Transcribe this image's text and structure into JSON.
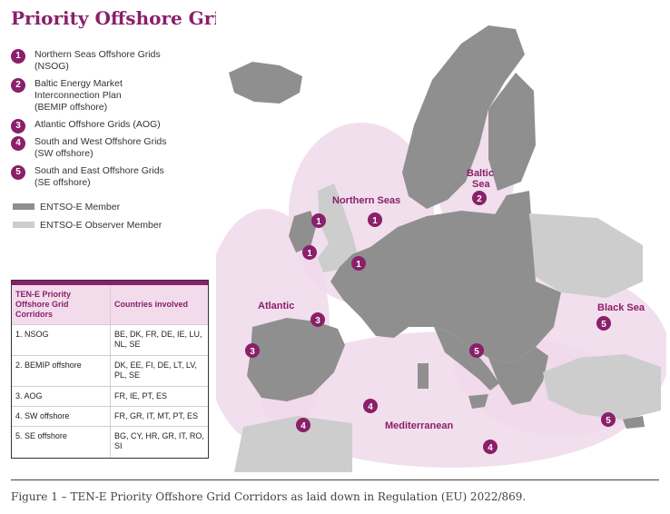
{
  "title": "Priority Offshore Grid Corridors",
  "legend": {
    "corridors": [
      {
        "num": "1",
        "lines": [
          "Northern Seas Offshore Grids",
          "(NSOG)"
        ]
      },
      {
        "num": "2",
        "lines": [
          "Baltic Energy Market",
          "Interconnection Plan",
          "(BEMIP offshore)"
        ]
      },
      {
        "num": "3",
        "lines": [
          "Atlantic Offshore Grids (AOG)"
        ]
      },
      {
        "num": "4",
        "lines": [
          "South and West Offshore Grids",
          "(SW offshore)"
        ]
      },
      {
        "num": "5",
        "lines": [
          "South and East Offshore Grids",
          "(SE offshore)"
        ]
      }
    ],
    "member": "ENTSO-E Member",
    "observer": "ENTSO-E Observer Member",
    "colors": {
      "member": "#8f8f8f",
      "observer": "#cdcdcd",
      "accent": "#8a1f6a",
      "corridor_fill": "#f0d9ea"
    }
  },
  "table": {
    "headers": [
      "TEN-E Priority Offshore Grid Corridors",
      "Countries involved"
    ],
    "rows": [
      {
        "corridor": "1. NSOG",
        "countries": "BE, DK, FR, DE, IE, LU, NL, SE"
      },
      {
        "corridor": "2. BEMIP offshore",
        "countries": "DK, EE, FI, DE, LT, LV, PL, SE"
      },
      {
        "corridor": "3. AOG",
        "countries": "FR, IE, PT, ES"
      },
      {
        "corridor": "4. SW offshore",
        "countries": "FR, GR, IT, MT, PT, ES"
      },
      {
        "corridor": "5. SE offshore",
        "countries": "BG, CY, HR, GR, IT, RO, SI"
      }
    ]
  },
  "map": {
    "regions": {
      "northern_seas": "Northern Seas",
      "baltic": [
        "Baltic",
        "Sea"
      ],
      "atlantic": "Atlantic",
      "mediterranean": "Mediterranean",
      "black_sea": "Black Sea"
    },
    "markers": [
      "1",
      "1",
      "1",
      "1",
      "2",
      "3",
      "3",
      "4",
      "4",
      "4",
      "5",
      "5",
      "5"
    ]
  },
  "caption": "Figure 1 – TEN-E Priority Offshore Grid Corridors as laid down in Regulation (EU) 2022/869."
}
